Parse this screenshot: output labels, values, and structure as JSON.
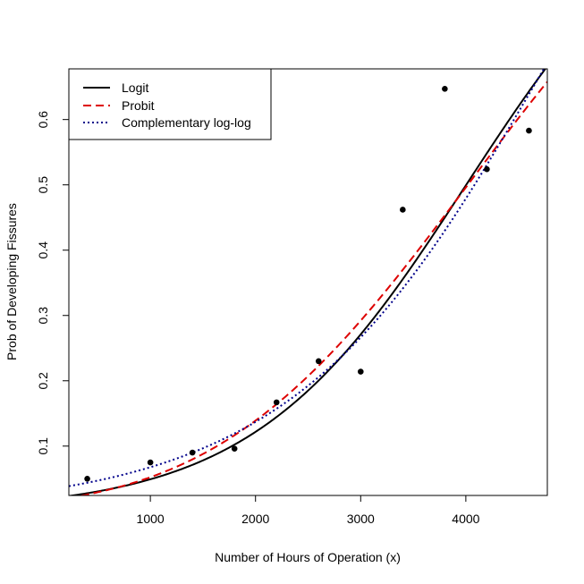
{
  "chart_data": {
    "type": "scatter",
    "title": "",
    "xlabel": "Number of Hours of Operation (x)",
    "ylabel": "Prob of Developing Fissures",
    "xlim": [
      225,
      4775
    ],
    "ylim": [
      0.0244,
      0.6776
    ],
    "x_ticks": [
      1000,
      2000,
      3000,
      4000
    ],
    "x_tick_labels": [
      "1000",
      "2000",
      "3000",
      "4000"
    ],
    "y_ticks": [
      0.1,
      0.2,
      0.3,
      0.4,
      0.5,
      0.6
    ],
    "y_tick_labels": [
      "0.1",
      "0.2",
      "0.3",
      "0.4",
      "0.5",
      "0.6"
    ],
    "grid": false,
    "legend_position": "top-left",
    "points": {
      "x": [
        400,
        1000,
        1400,
        1800,
        2200,
        2600,
        3000,
        3400,
        3800,
        4200,
        4600
      ],
      "y": [
        0.05,
        0.075,
        0.09,
        0.096,
        0.167,
        0.23,
        0.214,
        0.462,
        0.647,
        0.524,
        0.583
      ],
      "color": "#000000"
    },
    "series": [
      {
        "name": "Logit",
        "type": "line",
        "color": "#000000",
        "dash": "solid",
        "link": "logit",
        "b0": -3.9484,
        "b1": 0.0009863
      },
      {
        "name": "Probit",
        "type": "line",
        "color": "#dd0000",
        "dash": "dashed",
        "link": "probit",
        "b0": -2.1596,
        "b1": 0.0005374
      },
      {
        "name": "Complementary log-log",
        "type": "line",
        "color": "#00008b",
        "dash": "dotted",
        "link": "cloglog",
        "b0": -3.4015,
        "b1": 0.0007434
      }
    ]
  }
}
